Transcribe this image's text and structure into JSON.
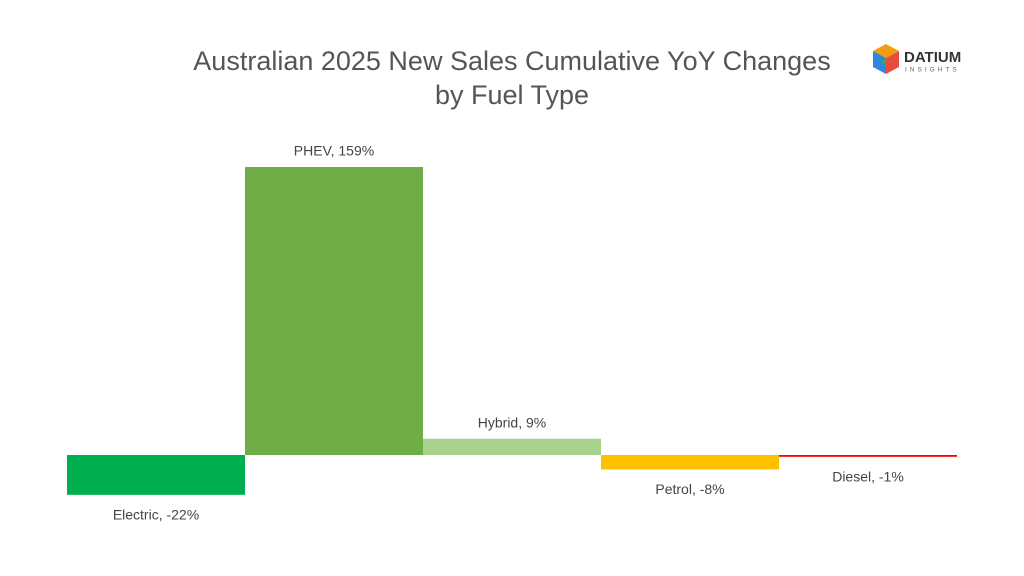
{
  "chart_data": {
    "type": "bar",
    "title": "Australian 2025 New Sales Cumulative YoY Changes by Fuel Type",
    "values": [
      -22,
      159,
      9,
      -8,
      -1
    ],
    "value_labels": [
      "Electric, -22%",
      "PHEV, 159%",
      "Hybrid, 9%",
      "Petrol, -8%",
      "Diesel, -1%"
    ],
    "colors": [
      "#00b050",
      "#70ad47",
      "#a9d18e",
      "#ffc000",
      "#ff0000"
    ]
  },
  "logo": {
    "name": "DATIUM",
    "tagline": "INSIGHTS"
  }
}
